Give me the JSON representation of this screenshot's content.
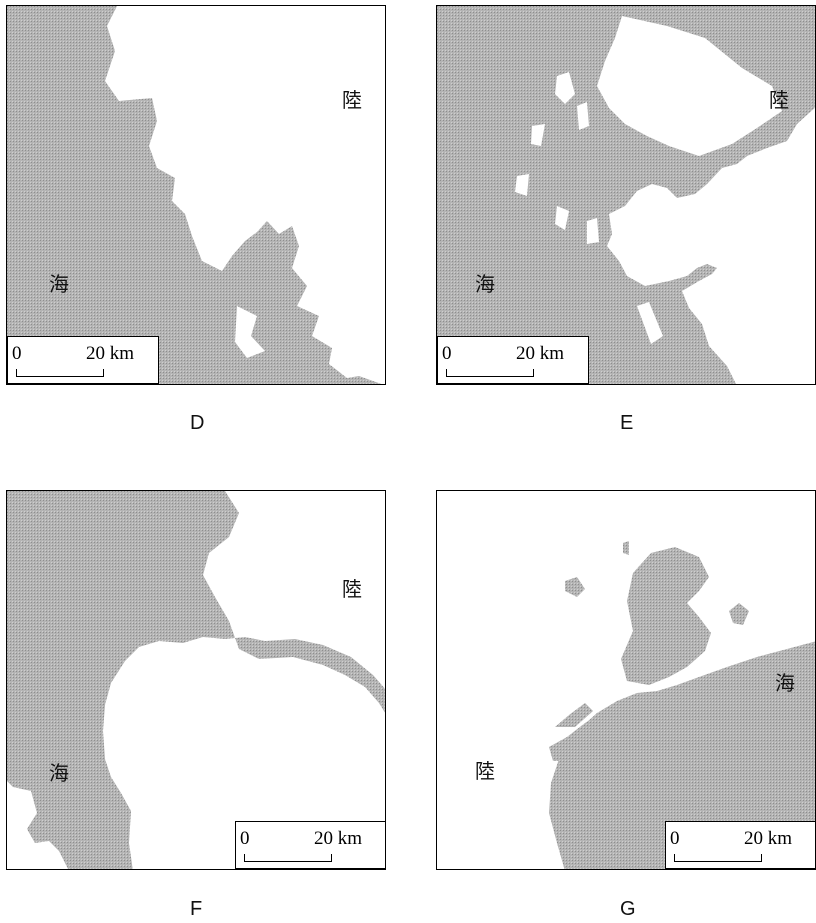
{
  "maps": [
    {
      "id": "D",
      "caption": "D",
      "land_label": "陸",
      "sea_label": "海",
      "scale": {
        "zero": "0",
        "distance": "20 km"
      }
    },
    {
      "id": "E",
      "caption": "E",
      "land_label": "陸",
      "sea_label": "海",
      "scale": {
        "zero": "0",
        "distance": "20 km"
      }
    },
    {
      "id": "F",
      "caption": "F",
      "land_label": "陸",
      "sea_label": "海",
      "scale": {
        "zero": "0",
        "distance": "20 km"
      }
    },
    {
      "id": "G",
      "caption": "G",
      "land_label": "陸",
      "sea_label": "海",
      "scale": {
        "zero": "0",
        "distance": "20 km"
      }
    }
  ],
  "colors": {
    "sea": "#a9a9a9",
    "land": "#ffffff",
    "outline": "#000000"
  }
}
